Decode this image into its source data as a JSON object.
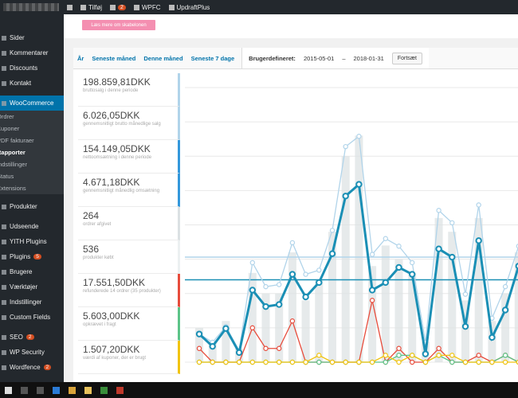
{
  "admin_bar": {
    "items": [
      {
        "label": "Tilføj"
      },
      {
        "label": "WPFC"
      },
      {
        "label": "UpdraftPlus"
      }
    ],
    "badge": "2"
  },
  "sidebar": {
    "menu": [
      {
        "label": "Sider",
        "style": "top"
      },
      {
        "label": "Kommentarer",
        "style": "top"
      },
      {
        "label": "Discounts",
        "style": "top"
      },
      {
        "label": "Kontakt",
        "style": "top"
      },
      {
        "label": "WooCommerce",
        "style": "active"
      },
      {
        "label": "Ordrer",
        "style": "sub"
      },
      {
        "label": "Kuponer",
        "style": "sub"
      },
      {
        "label": "PDF fakturaer",
        "style": "sub"
      },
      {
        "label": "Rapporter",
        "style": "sub-current"
      },
      {
        "label": "Indstillinger",
        "style": "sub"
      },
      {
        "label": "Status",
        "style": "sub"
      },
      {
        "label": "Extensions",
        "style": "sub-last"
      },
      {
        "label": "Produkter",
        "style": "top"
      },
      {
        "label": "Udseende",
        "style": "top-gap"
      },
      {
        "label": "YITH Plugins",
        "style": "top"
      },
      {
        "label": "Plugins",
        "style": "top",
        "badge": "5"
      },
      {
        "label": "Brugere",
        "style": "top"
      },
      {
        "label": "Værktøjer",
        "style": "top"
      },
      {
        "label": "Indstillinger",
        "style": "top"
      },
      {
        "label": "Custom Fields",
        "style": "top"
      },
      {
        "label": "SEO",
        "style": "top-gap",
        "badge": "2"
      },
      {
        "label": "WP Security",
        "style": "top"
      },
      {
        "label": "Wordfence",
        "style": "top",
        "badge": "2"
      }
    ]
  },
  "notice_button": "Læs mere om skabelonen",
  "range_tabs": [
    "År",
    "Seneste måned",
    "Denne måned",
    "Seneste 7 dage"
  ],
  "custom_range": {
    "label": "Brugerdefineret:",
    "from": "2015-05-01",
    "separator": "–",
    "to": "2018-01-31",
    "button": "Fortsæt"
  },
  "legend": [
    {
      "value": "198.859,81DKK",
      "description": "bruttosalg i denne periode",
      "color": "#b1d4ea"
    },
    {
      "value": "6.026,05DKK",
      "description": "gennemsnitligt brutto månedlige salg",
      "color": "#b1d4ea"
    },
    {
      "value": "154.149,05DKK",
      "description": "nettoomsætning i denne periode",
      "color": "#3498db"
    },
    {
      "value": "4.671,18DKK",
      "description": "gennemsnitligt månedlig omsætning",
      "color": "#3498db"
    },
    {
      "value": "264",
      "description": "ordrer afgivet",
      "color": "#dbe1e3"
    },
    {
      "value": "536",
      "description": "produkter købt",
      "color": "#ecf0f1"
    },
    {
      "value": "17.551,50DKK",
      "description": "refunderede 14 ordrer (35 produkter)",
      "color": "#e74c3c"
    },
    {
      "value": "5.603,00DKK",
      "description": "opkrævet i fragt",
      "color": "#5cc488"
    },
    {
      "value": "1.507,20DKK",
      "description": "værdi af kuponer, der er brugt",
      "color": "#f1c40f"
    }
  ],
  "chart": {
    "type": "line",
    "ylim": [
      0,
      40
    ],
    "yticks": [
      0,
      5,
      10,
      15,
      20,
      25,
      30,
      35,
      40
    ],
    "bars": {
      "color": "#dbe1e3",
      "values": [
        5,
        3,
        6,
        2,
        13,
        10,
        10,
        16,
        9,
        12,
        19,
        30,
        33,
        14,
        17,
        15,
        13,
        3,
        21,
        19,
        9,
        21,
        6,
        10,
        16
      ]
    },
    "averages": [
      {
        "value": 15.3,
        "color": "#b1d4ea"
      },
      {
        "value": 12,
        "color": "#1a8fb5"
      }
    ],
    "series": [
      {
        "color": "#e74c3c",
        "values": [
          2,
          0,
          0,
          0,
          5,
          2,
          2,
          6,
          0,
          0,
          0,
          0,
          0,
          9,
          0,
          2,
          0,
          0,
          2,
          0,
          0,
          1,
          0,
          1,
          0
        ]
      },
      {
        "color": "#5cc488",
        "values": [
          0,
          0,
          0,
          0,
          0,
          0,
          0,
          0,
          0,
          0,
          0,
          0,
          0,
          0,
          0,
          1,
          1,
          0,
          1,
          0,
          0,
          0,
          0,
          1,
          0
        ]
      },
      {
        "color": "#f1c40f",
        "values": [
          0,
          0,
          0,
          0,
          0,
          0,
          0,
          0,
          0,
          1,
          0,
          0,
          0,
          0,
          1,
          0,
          1,
          0,
          1,
          1,
          0,
          0,
          0,
          0,
          0
        ]
      },
      {
        "color": "#b1d4ea",
        "values": [
          4.1,
          2.9,
          5.2,
          1.7,
          14.5,
          11,
          11.3,
          17.4,
          12.8,
          13.4,
          19.2,
          31.4,
          32.9,
          15.7,
          18,
          16.9,
          14.5,
          2.9,
          22.1,
          20.3,
          9.9,
          22.9,
          6.4,
          11,
          16.9
        ]
      },
      {
        "color": "#1a8fb5",
        "values": [
          4.1,
          2.3,
          4.9,
          1.4,
          10.5,
          8.1,
          8.4,
          12.8,
          9.5,
          11.6,
          15.8,
          24.2,
          25.9,
          10.5,
          11.6,
          13.8,
          12.8,
          1.2,
          16.5,
          15.3,
          5.2,
          17.7,
          3.6,
          7.6,
          14
        ]
      }
    ]
  }
}
